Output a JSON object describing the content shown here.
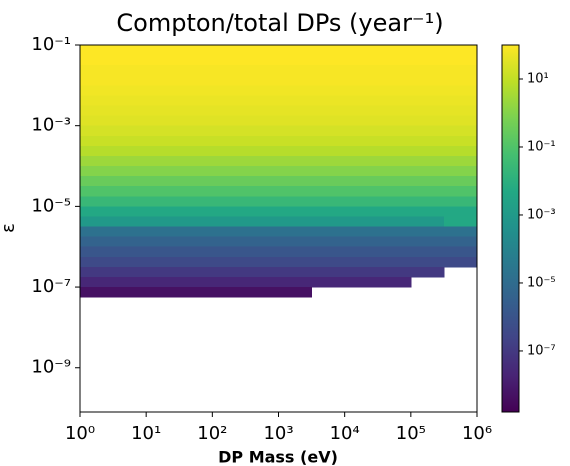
{
  "chart_data": {
    "type": "heatmap",
    "title": "Compton/total DPs (year⁻¹)",
    "x_label": "DP Mass (eV)",
    "y_label": "ε",
    "x_scale": "log",
    "y_scale": "log",
    "color_scale": "log",
    "colormap": "viridis",
    "xlim": [
      1,
      1000000
    ],
    "ylim": [
      8e-11,
      0.1
    ],
    "clim": [
      1.6e-09,
      100
    ],
    "xticks": [
      {
        "value": 1,
        "label": "10⁰"
      },
      {
        "value": 10,
        "label": "10¹"
      },
      {
        "value": 100,
        "label": "10²"
      },
      {
        "value": 1000,
        "label": "10³"
      },
      {
        "value": 10000,
        "label": "10⁴"
      },
      {
        "value": 100000,
        "label": "10⁵"
      },
      {
        "value": 1000000,
        "label": "10⁶"
      }
    ],
    "yticks": [
      {
        "value": 0.1,
        "label": "10⁻¹"
      },
      {
        "value": 0.001,
        "label": "10⁻³"
      },
      {
        "value": 1e-05,
        "label": "10⁻⁵"
      },
      {
        "value": 1e-07,
        "label": "10⁻⁷"
      },
      {
        "value": 1e-09,
        "label": "10⁻⁹"
      }
    ],
    "cticks": [
      {
        "value": 10,
        "label": "10¹"
      },
      {
        "value": 0.1,
        "label": "10⁻¹"
      },
      {
        "value": 0.001,
        "label": "10⁻³"
      },
      {
        "value": 1e-05,
        "label": "10⁻⁵"
      },
      {
        "value": 1e-07,
        "label": "10⁻⁷"
      }
    ],
    "x_edges": [
      1,
      3.16,
      10,
      31.6,
      100,
      316,
      1000,
      3160,
      10000,
      31600,
      100000,
      316000,
      1000000
    ],
    "y_edges": [
      0.1,
      0.0562,
      0.0316,
      0.0178,
      0.01,
      0.00562,
      0.00316,
      0.00178,
      0.001,
      0.000562,
      0.000316,
      0.000178,
      0.0001,
      5.62e-05,
      3.16e-05,
      1.78e-05,
      1e-05,
      5.62e-06,
      3.16e-06,
      1.78e-06,
      1e-06,
      5.62e-07,
      3.16e-07,
      1.78e-07,
      1e-07,
      5.62e-08
    ],
    "z": [
      [
        100,
        100,
        100,
        100,
        100,
        100,
        100,
        100,
        100,
        100,
        100,
        100
      ],
      [
        100,
        100,
        100,
        100,
        100,
        100,
        100,
        100,
        100,
        100,
        100,
        100
      ],
      [
        79.4,
        79.4,
        79.4,
        79.4,
        79.4,
        79.4,
        79.4,
        79.4,
        79.4,
        79.4,
        79.4,
        79.4
      ],
      [
        79.4,
        79.4,
        79.4,
        79.4,
        79.4,
        79.4,
        79.4,
        79.4,
        79.4,
        79.4,
        79.4,
        79.4
      ],
      [
        63.1,
        63.1,
        63.1,
        63.1,
        63.1,
        63.1,
        63.1,
        63.1,
        63.1,
        63.1,
        63.1,
        63.1
      ],
      [
        50.1,
        50.1,
        50.1,
        50.1,
        50.1,
        50.1,
        50.1,
        50.1,
        50.1,
        50.1,
        50.1,
        50.1
      ],
      [
        39.8,
        39.8,
        39.8,
        39.8,
        39.8,
        39.8,
        39.8,
        39.8,
        39.8,
        39.8,
        39.8,
        39.8
      ],
      [
        31.6,
        31.6,
        31.6,
        31.6,
        31.6,
        31.6,
        31.6,
        31.6,
        31.6,
        31.6,
        31.6,
        31.6
      ],
      [
        20,
        20,
        20,
        20,
        20,
        20,
        20,
        20,
        20,
        20,
        20,
        20
      ],
      [
        12.6,
        12.6,
        12.6,
        12.6,
        12.6,
        12.6,
        12.6,
        12.6,
        12.6,
        12.6,
        12.6,
        12.6
      ],
      [
        6.31,
        6.31,
        6.31,
        6.31,
        6.31,
        6.31,
        6.31,
        6.31,
        6.31,
        6.31,
        6.31,
        6.31
      ],
      [
        2.51,
        2.51,
        2.51,
        2.51,
        2.51,
        2.51,
        2.51,
        2.51,
        2.51,
        2.51,
        2.51,
        2.51
      ],
      [
        1,
        1,
        1,
        1,
        1,
        1,
        1,
        1,
        1,
        1,
        1,
        1
      ],
      [
        0.316,
        0.316,
        0.316,
        0.316,
        0.316,
        0.316,
        0.316,
        0.316,
        0.316,
        0.316,
        0.316,
        0.316
      ],
      [
        0.1,
        0.1,
        0.1,
        0.1,
        0.1,
        0.1,
        0.1,
        0.1,
        0.1,
        0.1,
        0.1,
        0.1
      ],
      [
        0.0251,
        0.0251,
        0.0251,
        0.0251,
        0.0251,
        0.0251,
        0.0251,
        0.0251,
        0.0251,
        0.0251,
        0.0251,
        0.0251
      ],
      [
        0.00501,
        0.00501,
        0.00501,
        0.00501,
        0.00501,
        0.00501,
        0.00501,
        0.00501,
        0.00501,
        0.00501,
        0.00501,
        0.00501
      ],
      [
        0.001,
        0.001,
        0.001,
        0.001,
        0.001,
        0.001,
        0.001,
        0.001,
        0.001,
        0.001,
        0.001,
        0.00501
      ],
      [
        1.58e-05,
        1.58e-05,
        1.58e-05,
        1.58e-05,
        1.58e-05,
        1.58e-05,
        1.58e-05,
        1.58e-05,
        1.58e-05,
        1.58e-05,
        1.58e-05,
        1.58e-05
      ],
      [
        3.98e-06,
        3.98e-06,
        3.98e-06,
        3.98e-06,
        3.98e-06,
        3.98e-06,
        3.98e-06,
        3.98e-06,
        3.98e-06,
        3.98e-06,
        3.98e-06,
        3.98e-06
      ],
      [
        1.26e-06,
        1.26e-06,
        1.26e-06,
        1.26e-06,
        1.26e-06,
        1.26e-06,
        1.26e-06,
        1.26e-06,
        1.26e-06,
        1.26e-06,
        1.26e-06,
        1.26e-06
      ],
      [
        3.98e-07,
        3.98e-07,
        3.98e-07,
        3.98e-07,
        3.98e-07,
        3.98e-07,
        3.98e-07,
        3.98e-07,
        3.98e-07,
        3.98e-07,
        3.98e-07,
        3.98e-07
      ],
      [
        1e-07,
        1e-07,
        1e-07,
        1e-07,
        1e-07,
        1e-07,
        1e-07,
        1e-07,
        1e-07,
        1e-07,
        1e-07,
        null
      ],
      [
        2.51e-08,
        2.51e-08,
        2.51e-08,
        2.51e-08,
        2.51e-08,
        2.51e-08,
        2.51e-08,
        2.51e-08,
        2.51e-08,
        2.51e-08,
        null,
        null
      ],
      [
        5.01e-09,
        5.01e-09,
        5.01e-09,
        5.01e-09,
        5.01e-09,
        5.01e-09,
        5.01e-09,
        null,
        null,
        null,
        null,
        null
      ]
    ]
  }
}
